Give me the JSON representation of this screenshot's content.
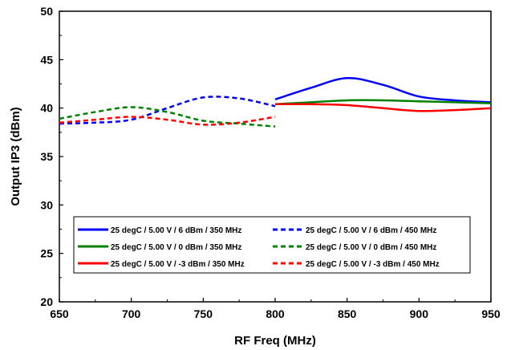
{
  "chart_data": {
    "type": "line",
    "title": "",
    "xlabel": "RF  Freq (MHz)",
    "ylabel": "Output IP3 (dBm)",
    "xlim": [
      650,
      950
    ],
    "ylim": [
      20,
      50
    ],
    "x_ticks": [
      "650",
      "700",
      "750",
      "800",
      "850",
      "900",
      "950"
    ],
    "y_ticks": [
      "20",
      "25",
      "30",
      "35",
      "40",
      "45",
      "50"
    ],
    "grid": false,
    "legend_placement": "bottom-center",
    "series": [
      {
        "name": "25 degC / 5.00 V / 6 dBm / 350 MHz",
        "color": "#0000ff",
        "dash": "solid",
        "points": [
          [
            800,
            40.9
          ],
          [
            825,
            42.1
          ],
          [
            850,
            43.1
          ],
          [
            875,
            42.4
          ],
          [
            900,
            41.2
          ],
          [
            925,
            40.8
          ],
          [
            950,
            40.6
          ]
        ]
      },
      {
        "name": "25 degC / 5.00 V / 6 dBm / 450 MHz",
        "color": "#0000ff",
        "dash": "dashed",
        "points": [
          [
            650,
            38.4
          ],
          [
            675,
            38.5
          ],
          [
            700,
            38.8
          ],
          [
            725,
            40.0
          ],
          [
            750,
            41.1
          ],
          [
            775,
            41.0
          ],
          [
            800,
            40.2
          ]
        ]
      },
      {
        "name": "25 degC / 5.00 V / 0 dBm / 350 MHz",
        "color": "#008000",
        "dash": "solid",
        "points": [
          [
            800,
            40.4
          ],
          [
            825,
            40.6
          ],
          [
            850,
            40.8
          ],
          [
            875,
            40.8
          ],
          [
            900,
            40.7
          ],
          [
            925,
            40.6
          ],
          [
            950,
            40.5
          ]
        ]
      },
      {
        "name": "25 degC / 5.00 V / 0 dBm / 450 MHz",
        "color": "#008000",
        "dash": "dashed",
        "points": [
          [
            650,
            38.9
          ],
          [
            675,
            39.6
          ],
          [
            700,
            40.1
          ],
          [
            725,
            39.6
          ],
          [
            750,
            38.7
          ],
          [
            775,
            38.4
          ],
          [
            800,
            38.1
          ]
        ]
      },
      {
        "name": "25 degC / 5.00 V / -3 dBm / 350 MHz",
        "color": "#ff0000",
        "dash": "solid",
        "points": [
          [
            800,
            40.4
          ],
          [
            825,
            40.4
          ],
          [
            850,
            40.3
          ],
          [
            875,
            40.0
          ],
          [
            900,
            39.7
          ],
          [
            925,
            39.8
          ],
          [
            950,
            40.0
          ]
        ]
      },
      {
        "name": "25 degC / 5.00 V / -3 dBm / 450 MHz",
        "color": "#ff0000",
        "dash": "dashed",
        "points": [
          [
            650,
            38.5
          ],
          [
            675,
            38.8
          ],
          [
            700,
            39.1
          ],
          [
            725,
            38.8
          ],
          [
            750,
            38.3
          ],
          [
            775,
            38.5
          ],
          [
            800,
            39.1
          ]
        ]
      }
    ]
  }
}
